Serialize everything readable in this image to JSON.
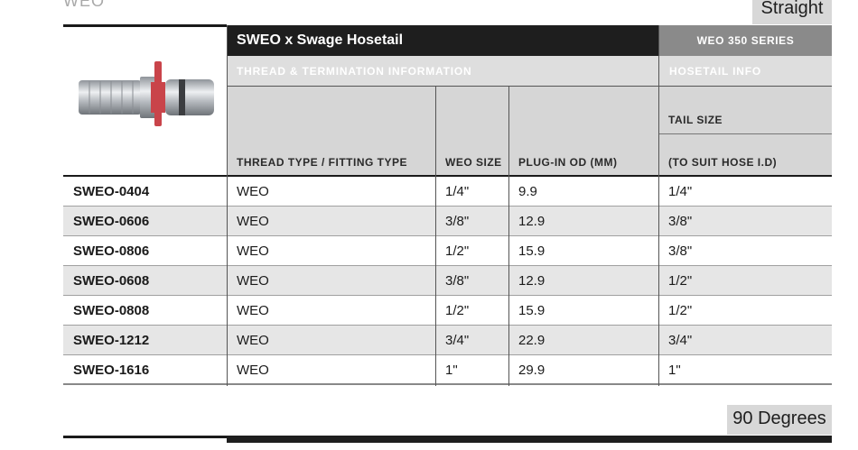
{
  "top_cut_text": "WEO",
  "tabs": {
    "straight": "Straight",
    "ninety": "90 Degrees"
  },
  "table": {
    "title": "SWEO x Swage Hosetail",
    "series": "WEO 350 SERIES",
    "group_left": "THREAD & TERMINATION INFORMATION",
    "group_right": "HOSETAIL INFO",
    "columns": {
      "thread": "THREAD TYPE / FITTING TYPE",
      "weo_size": "WEO SIZE",
      "plug_od": "PLUG-IN OD (MM)",
      "tail_size": "TAIL SIZE",
      "tail_sub": "(TO SUIT HOSE I.D)"
    },
    "rows": [
      {
        "code": "SWEO-0404",
        "thread": "WEO",
        "weo_size": "1/4\"",
        "plug_od": "9.9",
        "tail": "1/4\""
      },
      {
        "code": "SWEO-0606",
        "thread": "WEO",
        "weo_size": "3/8\"",
        "plug_od": "12.9",
        "tail": "3/8\""
      },
      {
        "code": "SWEO-0806",
        "thread": "WEO",
        "weo_size": "1/2\"",
        "plug_od": "15.9",
        "tail": "3/8\""
      },
      {
        "code": "SWEO-0608",
        "thread": "WEO",
        "weo_size": "3/8\"",
        "plug_od": "12.9",
        "tail": "1/2\""
      },
      {
        "code": "SWEO-0808",
        "thread": "WEO",
        "weo_size": "1/2\"",
        "plug_od": "15.9",
        "tail": "1/2\""
      },
      {
        "code": "SWEO-1212",
        "thread": "WEO",
        "weo_size": "3/4\"",
        "plug_od": "22.9",
        "tail": "3/4\""
      },
      {
        "code": "SWEO-1616",
        "thread": "WEO",
        "weo_size": "1\"",
        "plug_od": "29.9",
        "tail": "1\""
      }
    ]
  }
}
